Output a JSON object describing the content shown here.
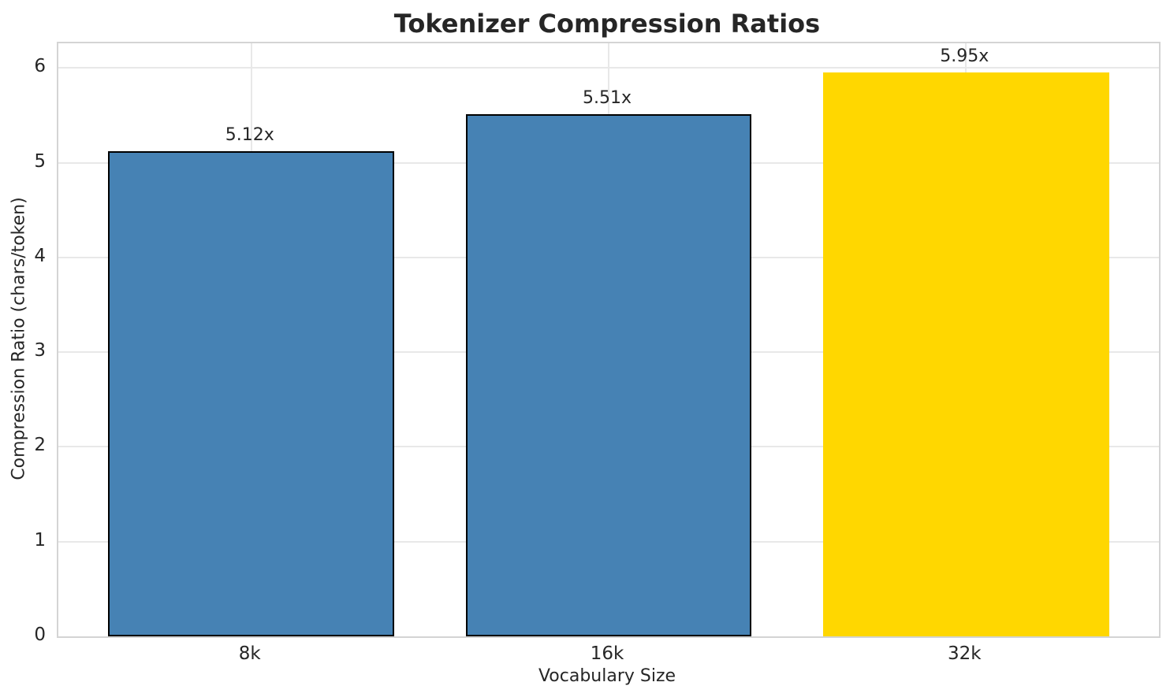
{
  "chart_data": {
    "type": "bar",
    "title": "Tokenizer Compression Ratios",
    "xlabel": "Vocabulary Size",
    "ylabel": "Compression Ratio (chars/token)",
    "categories": [
      "8k",
      "16k",
      "32k"
    ],
    "values": [
      5.12,
      5.51,
      5.95
    ],
    "bar_labels": [
      "5.12x",
      "5.51x",
      "5.95x"
    ],
    "bar_colors": [
      "#4682B4",
      "#4682B4",
      "#FFD700"
    ],
    "bar_edge_colors": [
      "#000000",
      "#000000",
      "#FFD700"
    ],
    "yticks": [
      0,
      1,
      2,
      3,
      4,
      5,
      6
    ],
    "ylim": [
      0,
      6.26
    ],
    "grid": true,
    "legend_position": "none",
    "colors": {
      "grid": "#E8E8E8",
      "spine": "#D4D4D4",
      "text": "#262626",
      "background": "#FFFFFF"
    }
  }
}
